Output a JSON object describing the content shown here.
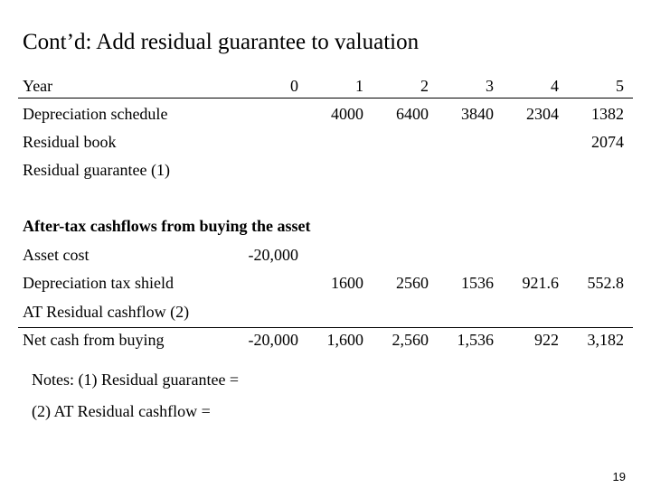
{
  "title": "Cont’d: Add residual guarantee to valuation",
  "table": {
    "header": {
      "label": "Year",
      "cells": [
        "0",
        "1",
        "2",
        "3",
        "4",
        "5"
      ]
    },
    "rows": [
      {
        "label": "Depreciation schedule",
        "cells": [
          null,
          "4000",
          "6400",
          "3840",
          "2304",
          "1382"
        ]
      },
      {
        "label": "Residual book",
        "cells": [
          null,
          null,
          null,
          null,
          null,
          "2074"
        ]
      },
      {
        "label": "Residual guarantee (1)",
        "cells": [
          null,
          null,
          null,
          null,
          null,
          null
        ]
      }
    ]
  },
  "section": {
    "title": "After-tax cashflows from buying the asset",
    "rows": [
      {
        "label": "Asset cost",
        "cells": [
          "-20,000",
          null,
          null,
          null,
          null,
          null
        ]
      },
      {
        "label": "Depreciation tax shield",
        "cells": [
          null,
          "1600",
          "2560",
          "1536",
          "921.6",
          "552.8"
        ]
      },
      {
        "label": "AT Residual cashflow (2)",
        "cells": [
          null,
          null,
          null,
          null,
          null,
          null
        ]
      },
      {
        "label": "Net cash from buying",
        "cells": [
          "-20,000",
          "1,600",
          "2,560",
          "1,536",
          "922",
          "3,182"
        ]
      }
    ]
  },
  "notes": [
    "Notes: (1) Residual guarantee =",
    "(2) AT Residual cashflow ="
  ],
  "page_number": "19"
}
